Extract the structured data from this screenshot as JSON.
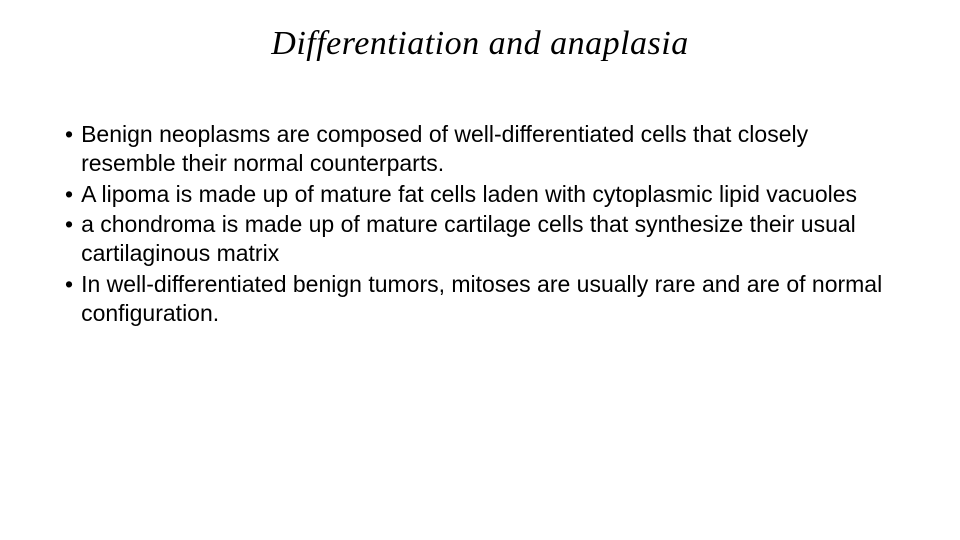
{
  "title": "Differentiation and anaplasia",
  "title_fontsize": 34,
  "title_font_style": "italic",
  "body_fontsize": 23,
  "background_color": "#ffffff",
  "text_color": "#000000",
  "bullets": [
    {
      "marker": "•",
      "text": "Benign neoplasms are composed of well-differentiated cells that closely resemble their normal counterparts."
    },
    {
      "marker": "•",
      "text": "A lipoma is made up of mature fat cells laden with cytoplasmic lipid vacuoles"
    },
    {
      "marker": "•",
      "text": "a chondroma is made up of mature cartilage cells that synthesize their usual cartilaginous matrix"
    },
    {
      "marker": "•",
      "text": "In well-differentiated benign tumors, mitoses are usually rare and are of normal configuration."
    }
  ]
}
